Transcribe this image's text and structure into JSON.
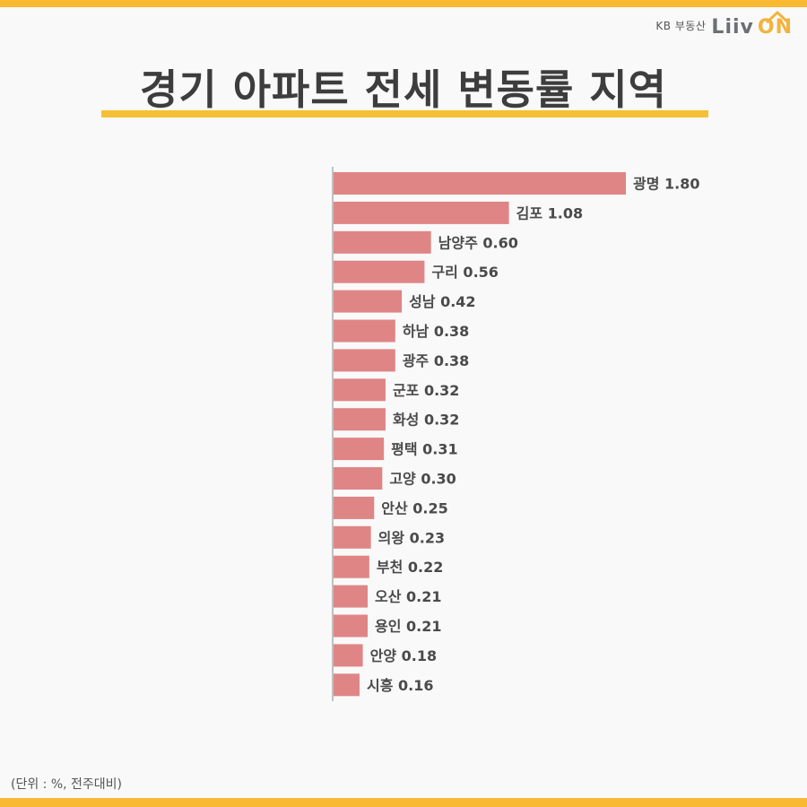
{
  "brand": {
    "company": "KB 부동산",
    "logo_main": "Liiv",
    "logo_accent": "ON"
  },
  "title": "경기 아파트 전세 변동률 지역",
  "footnote": "(단위 : %, 전주대비)",
  "colors": {
    "bar": "#df8585",
    "accent": "#f9b932",
    "title": "#3d3d3d",
    "axis": "#888888"
  },
  "chart_data": {
    "type": "bar",
    "orientation": "horizontal",
    "categories": [
      "광명",
      "김포",
      "남양주",
      "구리",
      "성남",
      "하남",
      "광주",
      "군포",
      "화성",
      "평택",
      "고양",
      "안산",
      "의왕",
      "부천",
      "오산",
      "용인",
      "안양",
      "시흥"
    ],
    "values": [
      1.8,
      1.08,
      0.6,
      0.56,
      0.42,
      0.38,
      0.38,
      0.32,
      0.32,
      0.31,
      0.3,
      0.25,
      0.23,
      0.22,
      0.21,
      0.21,
      0.18,
      0.16
    ],
    "xlim": [
      0,
      1.8
    ],
    "data_labels": true,
    "grid": false,
    "legend": "none"
  }
}
